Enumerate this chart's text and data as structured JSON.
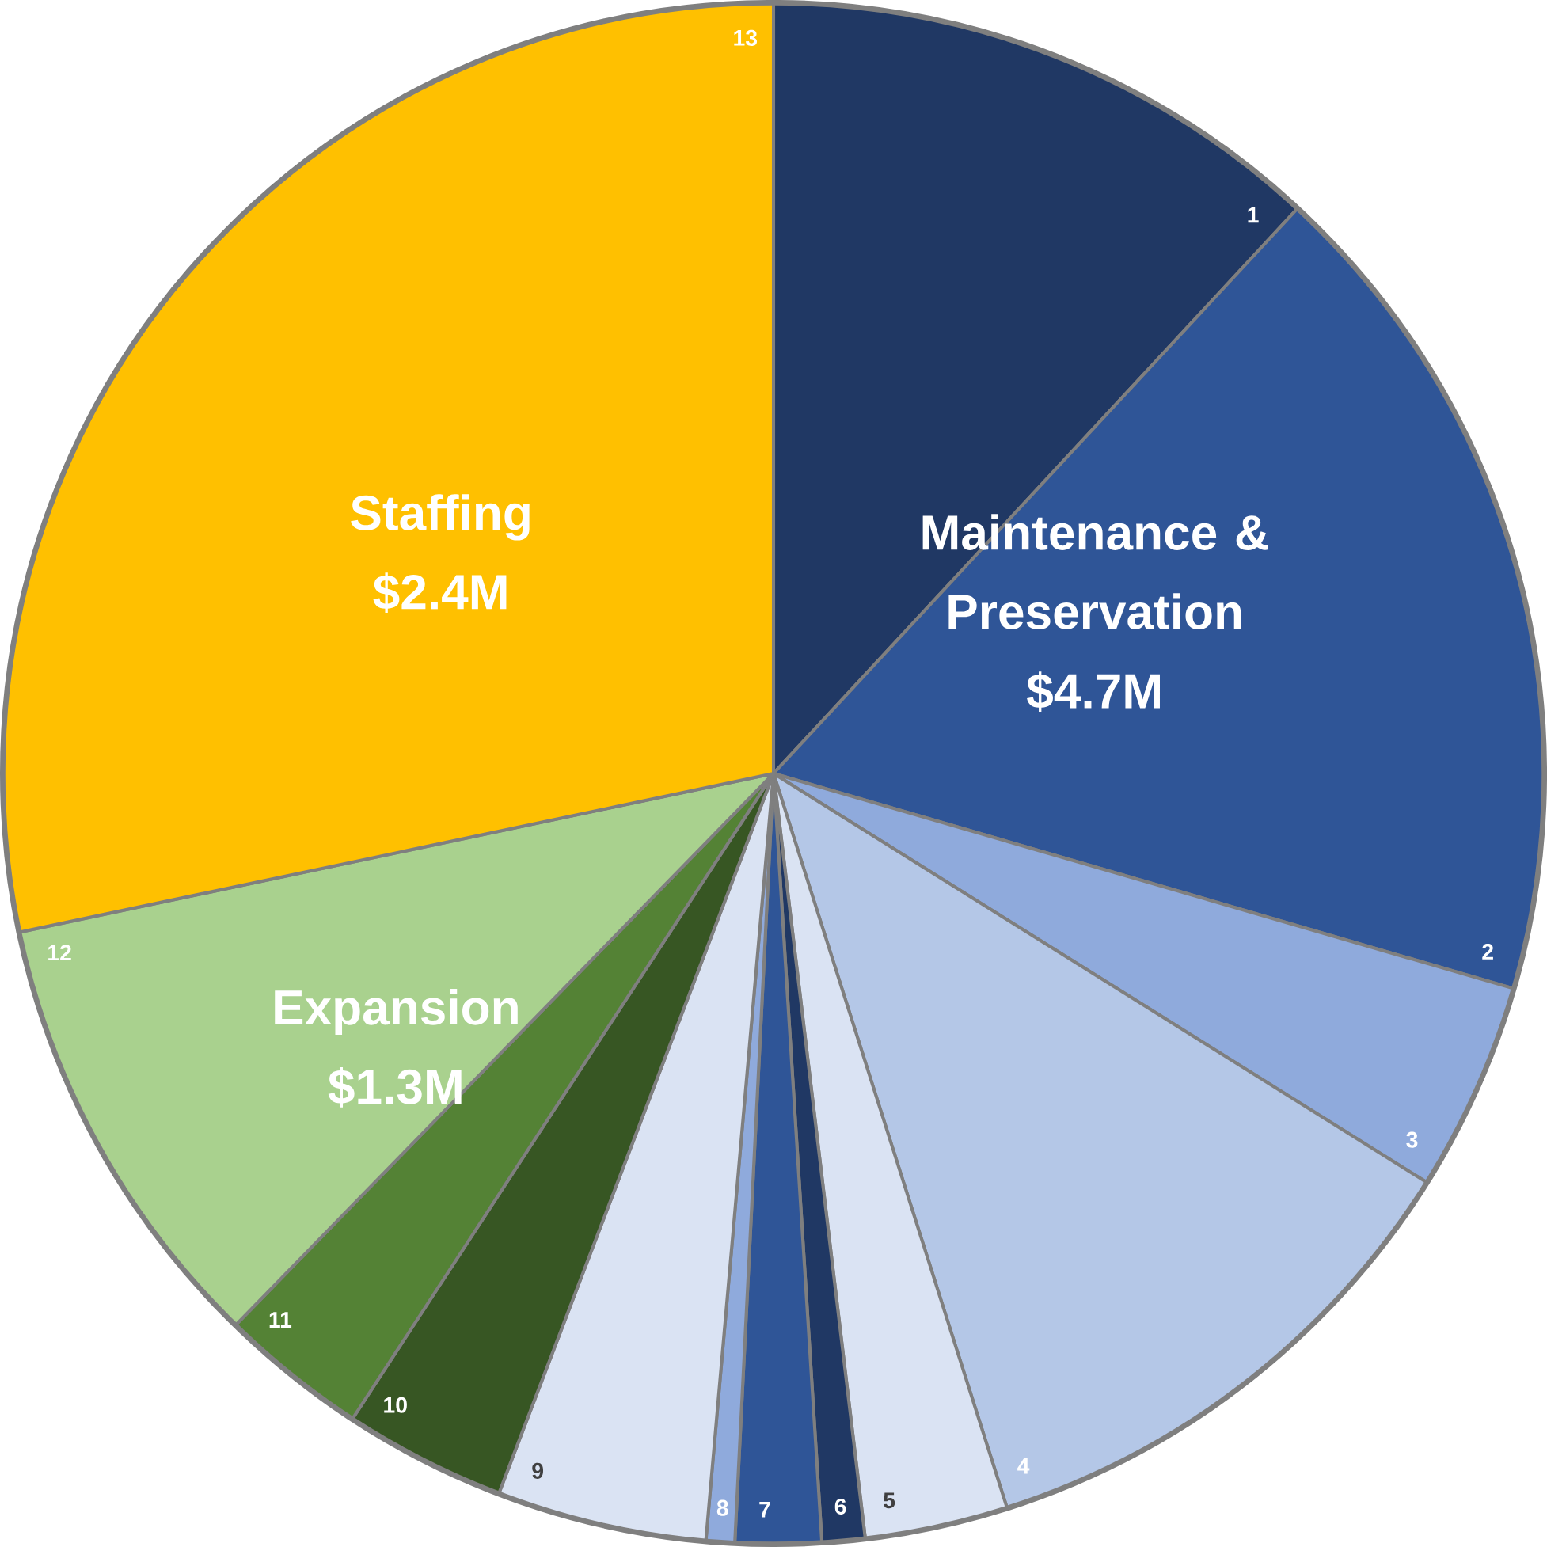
{
  "chart_data": {
    "type": "pie",
    "categories": [
      "1",
      "2",
      "3",
      "4",
      "5",
      "6",
      "7",
      "8",
      "9",
      "10",
      "11",
      "12",
      "13"
    ],
    "values": [
      11.9,
      17.6,
      4.4,
      11.2,
      3.0,
      0.9,
      1.8,
      0.6,
      4.4,
      3.4,
      3.1,
      9.4,
      28.3
    ],
    "colors": [
      "#203864",
      "#2f5597",
      "#8faadc",
      "#b4c7e7",
      "#dae3f3",
      "#203864",
      "#2f5597",
      "#8faadc",
      "#dae3f3",
      "#375623",
      "#548235",
      "#a9d18e",
      "#ffc000"
    ],
    "annotations": [
      "Maintenance & Preservation $4.7M",
      "Staffing $2.4M",
      "Expansion $1.3M"
    ]
  }
}
